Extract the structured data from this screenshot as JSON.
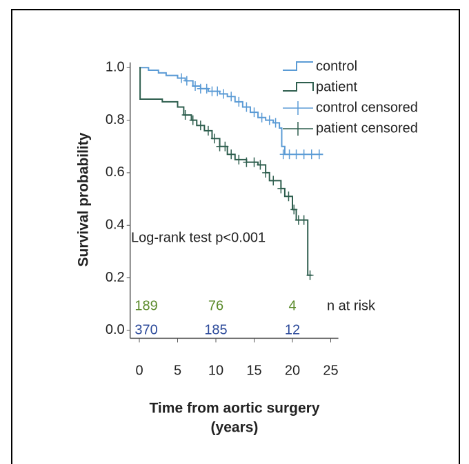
{
  "chart_data": {
    "type": "step",
    "ylabel": "Survival probability",
    "xlabel": [
      "Time from aortic surgery",
      "(years)"
    ],
    "annotation": "Log-rank test p<0.001",
    "xlim": [
      -1.2,
      26
    ],
    "xticks": [
      0,
      5,
      10,
      15,
      20,
      25
    ],
    "ylim": [
      -0.03,
      1.02
    ],
    "yticks": [
      {
        "value": 0,
        "label": "0.0"
      },
      0.2,
      0.4,
      0.6,
      0.8,
      {
        "value": 1,
        "label": "1.0"
      }
    ],
    "series": [
      {
        "name": "control",
        "kind": "step",
        "color": "#5b9bd5",
        "x": [
          0,
          1.2,
          2.5,
          3.5,
          5,
          6,
          7,
          8,
          9,
          10.5,
          11.5,
          12.5,
          13.5,
          14.5,
          15.5,
          16.5,
          17.5,
          18.3,
          18.6,
          19,
          24
        ],
        "values": [
          1.0,
          0.99,
          0.98,
          0.97,
          0.96,
          0.95,
          0.93,
          0.92,
          0.91,
          0.9,
          0.89,
          0.87,
          0.85,
          0.83,
          0.81,
          0.8,
          0.79,
          0.77,
          0.7,
          0.67,
          0.67
        ]
      },
      {
        "name": "patient",
        "kind": "step",
        "color": "#2e5e4e",
        "x": [
          0,
          0.1,
          3,
          5,
          5.8,
          6.8,
          7.5,
          8.5,
          9.5,
          10.5,
          11.5,
          12.5,
          14,
          15.5,
          16.5,
          17,
          18.5,
          19,
          20,
          20.5,
          22,
          22.5
        ],
        "values": [
          1.0,
          0.88,
          0.87,
          0.85,
          0.82,
          0.8,
          0.78,
          0.76,
          0.73,
          0.7,
          0.67,
          0.65,
          0.64,
          0.63,
          0.6,
          0.57,
          0.54,
          0.51,
          0.46,
          0.42,
          0.21,
          0.21
        ]
      },
      {
        "name": "control censored",
        "kind": "censor",
        "color": "#5b9bd5",
        "x": [
          5.5,
          6.2,
          7.3,
          8,
          8.8,
          9.5,
          10.2,
          11,
          12,
          13,
          14,
          15,
          16,
          17,
          17.8,
          18.8,
          19.6,
          20.5,
          21.5,
          22.5,
          23.5
        ],
        "values": [
          0.96,
          0.95,
          0.93,
          0.92,
          0.92,
          0.91,
          0.91,
          0.9,
          0.89,
          0.87,
          0.85,
          0.83,
          0.81,
          0.8,
          0.79,
          0.67,
          0.67,
          0.67,
          0.67,
          0.67,
          0.67
        ]
      },
      {
        "name": "patient censored",
        "kind": "censor",
        "color": "#2e5e4e",
        "x": [
          6,
          7,
          8,
          9,
          9.8,
          10.5,
          11.2,
          12,
          13,
          14,
          15,
          15.8,
          16.5,
          17.5,
          18.5,
          19.5,
          20.2,
          20.8,
          21.5,
          22.3
        ],
        "values": [
          0.82,
          0.8,
          0.78,
          0.76,
          0.73,
          0.7,
          0.7,
          0.67,
          0.65,
          0.64,
          0.64,
          0.63,
          0.6,
          0.57,
          0.54,
          0.51,
          0.46,
          0.42,
          0.42,
          0.21
        ]
      }
    ],
    "risk_table": {
      "label": "n at risk",
      "x": [
        0,
        10,
        20
      ],
      "rows": [
        {
          "color": "#5a8a2a",
          "values": [
            189,
            76,
            4
          ]
        },
        {
          "color": "#2c4a9a",
          "values": [
            370,
            185,
            12
          ]
        }
      ]
    }
  }
}
